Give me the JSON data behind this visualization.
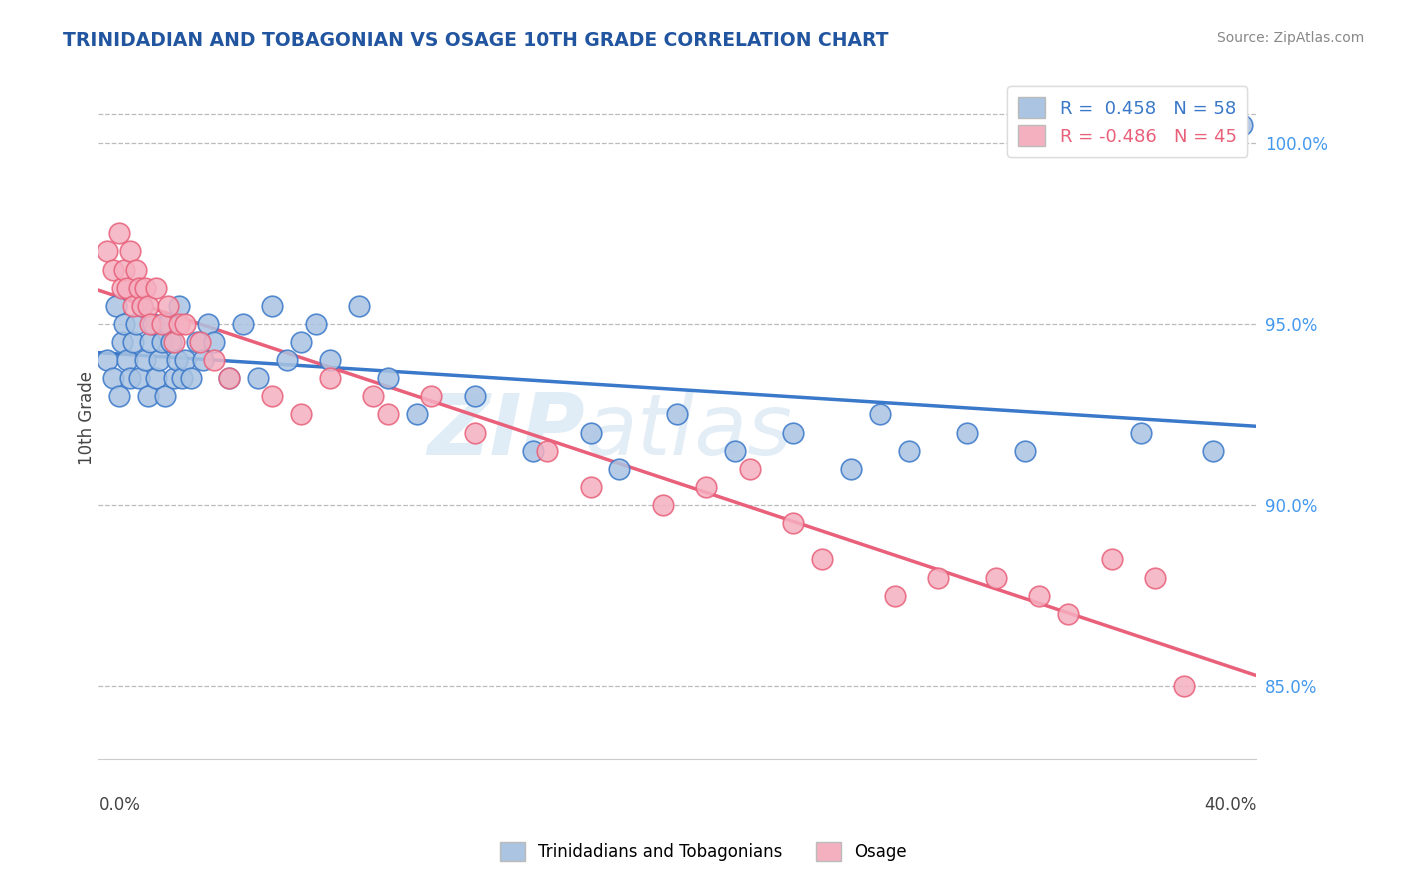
{
  "title": "TRINIDADIAN AND TOBAGONIAN VS OSAGE 10TH GRADE CORRELATION CHART",
  "source": "Source: ZipAtlas.com",
  "ylabel": "10th Grade",
  "ytick_values": [
    85.0,
    90.0,
    95.0,
    100.0
  ],
  "xmin": 0.0,
  "xmax": 40.0,
  "ymin": 83.0,
  "ymax": 101.8,
  "blue_color": "#aac4e2",
  "pink_color": "#f5b0c0",
  "blue_line_color": "#3a78c9",
  "pink_line_color": "#e8607a",
  "legend_blue_label": "R =  0.458   N = 58",
  "legend_pink_label": "R = -0.486   N = 45",
  "legend_label_blue": "Trinidadians and Tobagonians",
  "legend_label_pink": "Osage",
  "watermark_zip": "ZIP",
  "watermark_atlas": "atlas",
  "title_color": "#2255a0",
  "blue_scatter_x": [
    0.3,
    0.5,
    0.6,
    0.7,
    0.8,
    0.9,
    1.0,
    1.1,
    1.2,
    1.3,
    1.4,
    1.5,
    1.6,
    1.7,
    1.8,
    1.9,
    2.0,
    2.1,
    2.2,
    2.3,
    2.4,
    2.5,
    2.6,
    2.7,
    2.8,
    2.9,
    3.0,
    3.2,
    3.4,
    3.6,
    3.8,
    4.0,
    4.5,
    5.0,
    5.5,
    6.0,
    6.5,
    7.0,
    7.5,
    8.0,
    9.0,
    10.0,
    11.0,
    13.0,
    15.0,
    17.0,
    18.0,
    20.0,
    22.0,
    24.0,
    26.0,
    27.0,
    28.0,
    30.0,
    32.0,
    36.0,
    38.5,
    39.5
  ],
  "blue_scatter_y": [
    94.0,
    93.5,
    95.5,
    93.0,
    94.5,
    95.0,
    94.0,
    93.5,
    94.5,
    95.0,
    93.5,
    95.5,
    94.0,
    93.0,
    94.5,
    95.0,
    93.5,
    94.0,
    94.5,
    93.0,
    95.0,
    94.5,
    93.5,
    94.0,
    95.5,
    93.5,
    94.0,
    93.5,
    94.5,
    94.0,
    95.0,
    94.5,
    93.5,
    95.0,
    93.5,
    95.5,
    94.0,
    94.5,
    95.0,
    94.0,
    95.5,
    93.5,
    92.5,
    93.0,
    91.5,
    92.0,
    91.0,
    92.5,
    91.5,
    92.0,
    91.0,
    92.5,
    91.5,
    92.0,
    91.5,
    92.0,
    91.5,
    100.5
  ],
  "pink_scatter_x": [
    0.3,
    0.5,
    0.7,
    0.8,
    0.9,
    1.0,
    1.1,
    1.2,
    1.3,
    1.4,
    1.5,
    1.6,
    1.7,
    1.8,
    2.0,
    2.2,
    2.4,
    2.6,
    2.8,
    3.0,
    3.5,
    4.0,
    4.5,
    6.0,
    7.0,
    8.0,
    9.5,
    10.0,
    11.5,
    13.0,
    15.5,
    17.0,
    19.5,
    21.0,
    22.5,
    24.0,
    25.0,
    27.5,
    29.0,
    31.0,
    32.5,
    33.5,
    35.0,
    36.5,
    37.5
  ],
  "pink_scatter_y": [
    97.0,
    96.5,
    97.5,
    96.0,
    96.5,
    96.0,
    97.0,
    95.5,
    96.5,
    96.0,
    95.5,
    96.0,
    95.5,
    95.0,
    96.0,
    95.0,
    95.5,
    94.5,
    95.0,
    95.0,
    94.5,
    94.0,
    93.5,
    93.0,
    92.5,
    93.5,
    93.0,
    92.5,
    93.0,
    92.0,
    91.5,
    90.5,
    90.0,
    90.5,
    91.0,
    89.5,
    88.5,
    87.5,
    88.0,
    88.0,
    87.5,
    87.0,
    88.5,
    88.0,
    85.0
  ]
}
